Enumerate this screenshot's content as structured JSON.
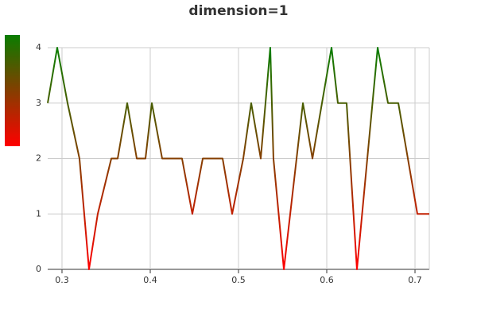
{
  "chart_data": {
    "type": "line",
    "title": "dimension=1",
    "x": [
      0.2838,
      0.2946,
      0.3063,
      0.3198,
      0.3306,
      0.3405,
      0.3559,
      0.3631,
      0.3739,
      0.3847,
      0.3946,
      0.4018,
      0.4135,
      0.436,
      0.4477,
      0.4595,
      0.482,
      0.4928,
      0.5054,
      0.5144,
      0.5252,
      0.536,
      0.5396,
      0.5514,
      0.573,
      0.5838,
      0.6054,
      0.6126,
      0.6225,
      0.6342,
      0.6577,
      0.6694,
      0.6811,
      0.7027,
      0.7162
    ],
    "values": [
      3,
      4,
      3,
      2,
      0,
      1,
      2,
      2,
      3,
      2,
      2,
      3,
      2,
      2,
      1,
      2,
      2,
      1,
      2,
      3,
      2,
      4,
      2,
      0,
      3,
      2,
      4,
      3,
      3,
      0,
      4,
      3,
      3,
      1,
      1
    ],
    "xlim": [
      0.2838,
      0.7162
    ],
    "xticks": [
      0.3,
      0.4,
      0.5,
      0.6,
      0.7
    ],
    "ylim": [
      0,
      4
    ],
    "yticks": [
      0,
      1,
      2,
      3,
      4
    ],
    "grid": true,
    "visual_map": {
      "low_color": "#ff0000",
      "high_color": "#0a7d00"
    }
  }
}
